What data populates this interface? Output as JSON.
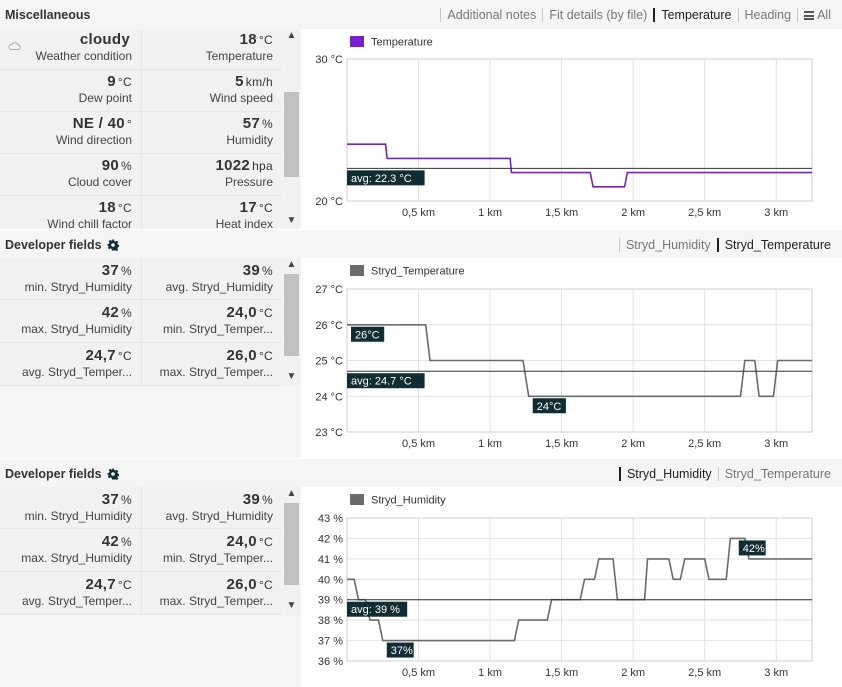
{
  "colors": {
    "accent_purple": "#7a1fd0",
    "series_gray": "#6b6b6b",
    "label_bg": "#0f2d33",
    "tab_active": "#222222"
  },
  "misc": {
    "title": "Miscellaneous",
    "tabs": [
      "Additional notes",
      "Fit details (by file)",
      "Temperature",
      "Heading",
      "All"
    ],
    "active_tab": "Temperature",
    "all_icon": "menu-icon",
    "weather_icon": "cloud-icon",
    "cells": [
      {
        "value": "cloudy",
        "unit": "",
        "label": "Weather condition"
      },
      {
        "value": "18",
        "unit": "°C",
        "label": "Temperature"
      },
      {
        "value": "9",
        "unit": "°C",
        "label": "Dew point"
      },
      {
        "value": "5",
        "unit": "km/h",
        "label": "Wind speed"
      },
      {
        "value": "NE / 40",
        "unit": "°",
        "label": "Wind direction"
      },
      {
        "value": "57",
        "unit": "%",
        "label": "Humidity"
      },
      {
        "value": "90",
        "unit": "%",
        "label": "Cloud cover"
      },
      {
        "value": "1022",
        "unit": "hpa",
        "label": "Pressure"
      },
      {
        "value": "18",
        "unit": "°C",
        "label": "Wind chill factor"
      },
      {
        "value": "17",
        "unit": "°C",
        "label": "Heat index"
      }
    ]
  },
  "dev1": {
    "title": "Developer fields",
    "tabs": [
      "Stryd_Humidity",
      "Stryd_Temperature"
    ],
    "active_tab": "Stryd_Temperature",
    "cells": [
      {
        "value": "37",
        "unit": "%",
        "label": "min. Stryd_Humidity"
      },
      {
        "value": "39",
        "unit": "%",
        "label": "avg. Stryd_Humidity"
      },
      {
        "value": "42",
        "unit": "%",
        "label": "max. Stryd_Humidity"
      },
      {
        "value": "24,0",
        "unit": "°C",
        "label": "min. Stryd_Temper..."
      },
      {
        "value": "24,7",
        "unit": "°C",
        "label": "avg. Stryd_Temper..."
      },
      {
        "value": "26,0",
        "unit": "°C",
        "label": "max. Stryd_Temper..."
      }
    ]
  },
  "dev2": {
    "title": "Developer fields",
    "tabs": [
      "Stryd_Humidity",
      "Stryd_Temperature"
    ],
    "active_tab": "Stryd_Humidity",
    "cells": [
      {
        "value": "37",
        "unit": "%",
        "label": "min. Stryd_Humidity"
      },
      {
        "value": "39",
        "unit": "%",
        "label": "avg. Stryd_Humidity"
      },
      {
        "value": "42",
        "unit": "%",
        "label": "max. Stryd_Humidity"
      },
      {
        "value": "24,0",
        "unit": "°C",
        "label": "min. Stryd_Temper..."
      },
      {
        "value": "24,7",
        "unit": "°C",
        "label": "avg. Stryd_Temper..."
      },
      {
        "value": "26,0",
        "unit": "°C",
        "label": "max. Stryd_Temper..."
      }
    ]
  },
  "chart_data": [
    {
      "type": "line",
      "series_name": "Temperature",
      "color": "#7a1fd0",
      "legend": "top-left",
      "grid": true,
      "x_ticks": [
        "0,5 km",
        "1 km",
        "1,5 km",
        "2 km",
        "2,5 km",
        "3 km"
      ],
      "x_tick_values": [
        0.5,
        1,
        1.5,
        2,
        2.5,
        3
      ],
      "y_ticks": [
        "20 °C",
        "30 °C"
      ],
      "y_tick_values": [
        20,
        30
      ],
      "xlim": [
        0,
        3.25
      ],
      "ylim": [
        20,
        30
      ],
      "x": [
        0,
        0.27,
        0.28,
        1.14,
        1.15,
        1.7,
        1.72,
        1.94,
        1.96,
        3.25
      ],
      "y": [
        24,
        24,
        23,
        23,
        22,
        22,
        21,
        21,
        22,
        22
      ],
      "avg_value": 22.3,
      "avg_label": "avg: 22.3 °C",
      "point_labels": []
    },
    {
      "type": "line",
      "series_name": "Stryd_Temperature",
      "color": "#6b6b6b",
      "legend": "top-left",
      "grid": true,
      "x_ticks": [
        "0,5 km",
        "1 km",
        "1,5 km",
        "2 km",
        "2,5 km",
        "3 km"
      ],
      "x_tick_values": [
        0.5,
        1,
        1.5,
        2,
        2.5,
        3
      ],
      "y_ticks": [
        "23 °C",
        "24 °C",
        "25 °C",
        "26 °C",
        "27 °C"
      ],
      "y_tick_values": [
        23,
        24,
        25,
        26,
        27
      ],
      "xlim": [
        0,
        3.25
      ],
      "ylim": [
        23,
        27
      ],
      "x": [
        0,
        0.55,
        0.58,
        1.23,
        1.27,
        2.75,
        2.78,
        2.85,
        2.88,
        2.98,
        3.01,
        3.25
      ],
      "y": [
        26,
        26,
        25,
        25,
        24,
        24,
        25,
        25,
        24,
        24,
        25,
        25
      ],
      "avg_value": 24.7,
      "avg_label": "avg: 24.7 °C",
      "point_labels": [
        {
          "text": "26°C",
          "x": 0.0,
          "y": 26,
          "place": "below"
        },
        {
          "text": "24°C",
          "x": 1.27,
          "y": 24,
          "place": "below"
        }
      ]
    },
    {
      "type": "line",
      "series_name": "Stryd_Humidity",
      "color": "#6b6b6b",
      "legend": "top-left",
      "grid": true,
      "x_ticks": [
        "0,5 km",
        "1 km",
        "1,5 km",
        "2 km",
        "2,5 km",
        "3 km"
      ],
      "x_tick_values": [
        0.5,
        1,
        1.5,
        2,
        2.5,
        3
      ],
      "y_ticks": [
        "36 %",
        "37 %",
        "38 %",
        "39 %",
        "40 %",
        "41 %",
        "42 %",
        "43 %"
      ],
      "y_tick_values": [
        36,
        37,
        38,
        39,
        40,
        41,
        42,
        43
      ],
      "xlim": [
        0,
        3.25
      ],
      "ylim": [
        36,
        43
      ],
      "x": [
        0,
        0.05,
        0.08,
        0.13,
        0.16,
        0.22,
        0.25,
        1.17,
        1.2,
        1.4,
        1.43,
        1.63,
        1.66,
        1.73,
        1.76,
        1.86,
        1.89,
        2.08,
        2.1,
        2.25,
        2.28,
        2.33,
        2.36,
        2.5,
        2.53,
        2.65,
        2.68,
        2.78,
        2.81,
        2.87,
        2.9,
        3.25
      ],
      "y": [
        40,
        40,
        39,
        39,
        38,
        38,
        37,
        37,
        38,
        38,
        39,
        39,
        40,
        40,
        41,
        41,
        39,
        39,
        41,
        41,
        40,
        40,
        41,
        41,
        40,
        40,
        42,
        42,
        41,
        41,
        41,
        41
      ],
      "avg_value": 39,
      "avg_label": "avg: 39 %",
      "point_labels": [
        {
          "text": "37%",
          "x": 0.25,
          "y": 37,
          "place": "below"
        },
        {
          "text": "42%",
          "x": 2.71,
          "y": 42,
          "place": "below"
        }
      ]
    }
  ]
}
